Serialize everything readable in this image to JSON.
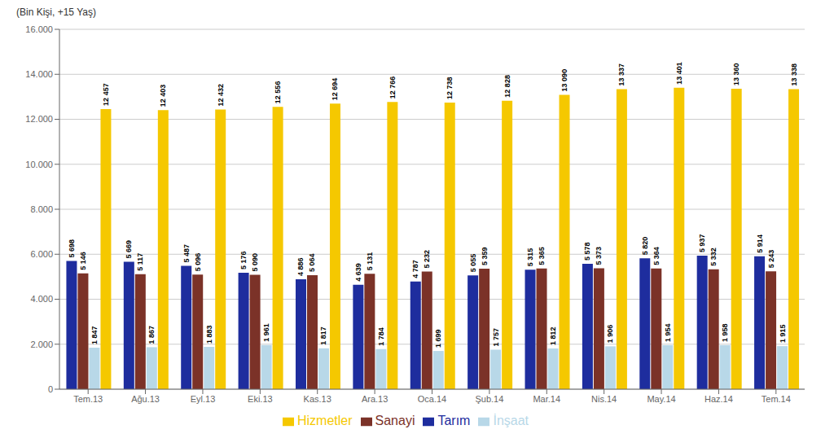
{
  "chart_data": {
    "type": "bar",
    "ylabel": "(Bin Kişi, +15 Yaş)",
    "categories": [
      "Tem.13",
      "Ağu.13",
      "Eyl.13",
      "Eki.13",
      "Kas.13",
      "Ara.13",
      "Oca.14",
      "Şub.14",
      "Mar.14",
      "Nis.14",
      "May.14",
      "Haz.14",
      "Tem.14"
    ],
    "series": [
      {
        "name": "Tarım",
        "color": "#1E2D9E",
        "values": [
          5698,
          5669,
          5487,
          5176,
          4886,
          4639,
          4787,
          5055,
          5315,
          5578,
          5820,
          5937,
          5914
        ],
        "value_labels": [
          "5 698",
          "5 669",
          "5 487",
          "5 176",
          "4 886",
          "4 639",
          "4 787",
          "5 055",
          "5 315",
          "5 578",
          "5 820",
          "5 937",
          "5 914"
        ]
      },
      {
        "name": "Sanayi",
        "color": "#7B3228",
        "values": [
          5146,
          5117,
          5096,
          5090,
          5064,
          5131,
          5232,
          5359,
          5365,
          5373,
          5364,
          5332,
          5243
        ],
        "value_labels": [
          "5 146",
          "5 117",
          "5 096",
          "5 090",
          "5 064",
          "5 131",
          "5 232",
          "5 359",
          "5 365",
          "5 373",
          "5 364",
          "5 332",
          "5 243"
        ]
      },
      {
        "name": "İnşaat",
        "color": "#B8D8E8",
        "values": [
          1847,
          1867,
          1883,
          1961,
          1817,
          1784,
          1699,
          1757,
          1812,
          1906,
          1954,
          1958,
          1915
        ],
        "value_labels": [
          "1 847",
          "1 867",
          "1 883",
          "1 961",
          "1 817",
          "1 784",
          "1 699",
          "1 757",
          "1 812",
          "1 906",
          "1 954",
          "1 958",
          "1 915"
        ]
      },
      {
        "name": "Hizmetler",
        "color": "#F5C800",
        "values": [
          12457,
          12403,
          12432,
          12556,
          12694,
          12766,
          12738,
          12828,
          13090,
          13337,
          13401,
          13360,
          13338
        ],
        "value_labels": [
          "12 457",
          "12 403",
          "12 432",
          "12 556",
          "12 694",
          "12 766",
          "12 738",
          "12 828",
          "13 090",
          "13 337",
          "13 401",
          "13 360",
          "13 338"
        ]
      }
    ],
    "ylim": [
      0,
      16000
    ],
    "yticks": [
      0,
      {
        "value": 2000,
        "label": "2.000"
      },
      {
        "value": 4000,
        "label": "4.000"
      },
      {
        "value": 6000,
        "label": "6.000"
      },
      {
        "value": 8000,
        "label": "8.000"
      },
      {
        "value": 10000,
        "label": "10.000"
      },
      {
        "value": 12000,
        "label": "12.000"
      },
      {
        "value": 14000,
        "label": "14.000"
      },
      {
        "value": 16000,
        "label": "16.000"
      }
    ],
    "grid": true,
    "legend": "bottom",
    "data_labels": true
  }
}
